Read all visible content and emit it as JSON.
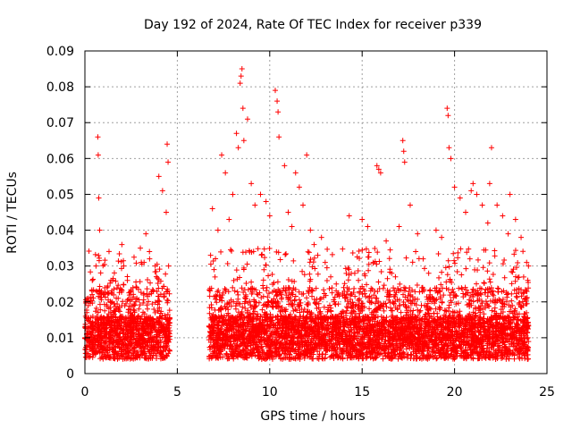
{
  "chart_data": {
    "type": "scatter",
    "title": "Day 192 of 2024, Rate Of TEC Index for receiver p339",
    "xlabel": "GPS time / hours",
    "ylabel": "ROTI / TECUs",
    "xlim": [
      0,
      25
    ],
    "ylim": [
      0,
      0.09
    ],
    "xticks": [
      0,
      5,
      10,
      15,
      20,
      25
    ],
    "yticks": [
      0,
      0.01,
      0.02,
      0.03,
      0.04,
      0.05,
      0.06,
      0.07,
      0.08,
      0.09
    ],
    "xtick_labels": [
      "0",
      "5",
      "10",
      "15",
      "20",
      "25"
    ],
    "ytick_labels": [
      "0",
      "0.01",
      "0.02",
      "0.03",
      "0.04",
      "0.05",
      "0.06",
      "0.07",
      "0.08",
      "0.09"
    ],
    "grid": true,
    "marker": "plus",
    "color": "#ff0000",
    "x_coverage_hours": [
      [
        0,
        4.6
      ],
      [
        6.7,
        24
      ]
    ],
    "series": [
      {
        "x": [
          0.2,
          0.4,
          0.6,
          0.7,
          0.72,
          0.75,
          0.8,
          0.9,
          1.0,
          1.2,
          1.5,
          1.8,
          2.0,
          2.1,
          2.3,
          2.5,
          2.8,
          3.0,
          3.2,
          3.3,
          3.5,
          3.8,
          4.0,
          4.2,
          4.4,
          4.45,
          4.5,
          6.8,
          6.9,
          7.2,
          7.4,
          7.6,
          7.8,
          8.0,
          8.2,
          8.3,
          8.4,
          8.45,
          8.5,
          8.55,
          8.6,
          8.8,
          9.0,
          9.2,
          9.5,
          9.8,
          10.0,
          10.3,
          10.4,
          10.45,
          10.5,
          10.8,
          11.0,
          11.2,
          11.4,
          11.6,
          11.8,
          12.0,
          12.2,
          12.4,
          12.6,
          12.8,
          13.0,
          13.3,
          13.6,
          14.0,
          14.3,
          14.6,
          14.8,
          15.0,
          15.3,
          15.6,
          15.8,
          15.9,
          16.0,
          16.3,
          16.6,
          17.0,
          17.2,
          17.25,
          17.3,
          17.6,
          18.0,
          18.3,
          18.6,
          19.0,
          19.3,
          19.6,
          19.65,
          19.7,
          19.8,
          20.0,
          20.3,
          20.6,
          20.9,
          21.0,
          21.2,
          21.5,
          21.8,
          21.9,
          22.0,
          22.3,
          22.6,
          22.9,
          23.0,
          23.3,
          23.6,
          23.9,
          24.0
        ],
        "y": [
          0.021,
          0.026,
          0.03,
          0.066,
          0.061,
          0.049,
          0.04,
          0.023,
          0.022,
          0.024,
          0.026,
          0.021,
          0.036,
          0.03,
          0.026,
          0.023,
          0.024,
          0.035,
          0.031,
          0.039,
          0.032,
          0.03,
          0.055,
          0.051,
          0.045,
          0.064,
          0.059,
          0.033,
          0.046,
          0.04,
          0.061,
          0.056,
          0.043,
          0.05,
          0.067,
          0.063,
          0.081,
          0.083,
          0.085,
          0.074,
          0.065,
          0.071,
          0.053,
          0.047,
          0.05,
          0.048,
          0.044,
          0.079,
          0.076,
          0.073,
          0.066,
          0.058,
          0.045,
          0.041,
          0.056,
          0.052,
          0.047,
          0.061,
          0.04,
          0.036,
          0.033,
          0.038,
          0.031,
          0.027,
          0.025,
          0.024,
          0.044,
          0.028,
          0.026,
          0.043,
          0.041,
          0.031,
          0.058,
          0.057,
          0.056,
          0.037,
          0.028,
          0.041,
          0.065,
          0.062,
          0.059,
          0.047,
          0.039,
          0.032,
          0.028,
          0.04,
          0.038,
          0.074,
          0.072,
          0.063,
          0.06,
          0.052,
          0.049,
          0.045,
          0.051,
          0.053,
          0.05,
          0.047,
          0.042,
          0.053,
          0.063,
          0.047,
          0.044,
          0.039,
          0.05,
          0.043,
          0.038,
          0.031,
          0.03
        ]
      }
    ]
  }
}
